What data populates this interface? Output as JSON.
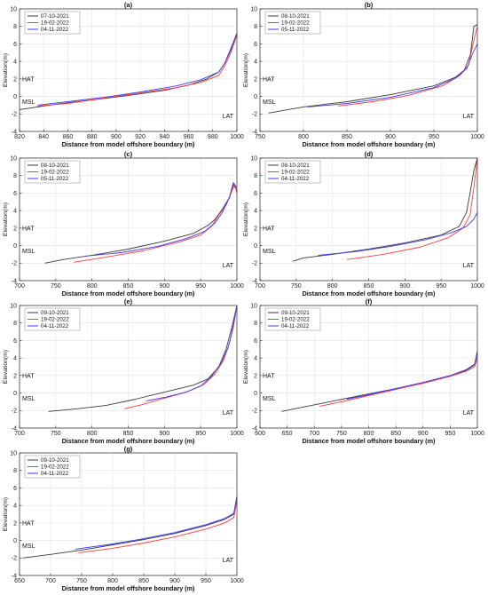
{
  "colors": {
    "black": "#3a3a3a",
    "red": "#ff3b3b",
    "blue": "#3b3bff",
    "grid": "#e3e3e3",
    "axis": "#262626"
  },
  "chart_data": [
    {
      "type": "line",
      "title": "(a)",
      "xlabel": "Distance from model offshore boundary (m)",
      "ylabel": "Elevation(m)",
      "xlim": [
        820,
        1000
      ],
      "ylim": [
        -4,
        10
      ],
      "xticks": [
        820,
        840,
        860,
        880,
        900,
        920,
        940,
        960,
        980,
        1000
      ],
      "yticks": [
        -4,
        -2,
        0,
        2,
        4,
        6,
        8,
        10
      ],
      "grid": true,
      "legend": "top-left",
      "annotations": [
        {
          "text": "HAT",
          "y": 2.0
        },
        {
          "text": "MSL",
          "y": -0.6
        },
        {
          "text": "LAT",
          "y": -2.2
        }
      ],
      "series": [
        {
          "name": "07-10-2021",
          "color": "black",
          "x": [
            820,
            850,
            880,
            910,
            940,
            960,
            975,
            985,
            990,
            995,
            1000
          ],
          "y": [
            -1.5,
            -0.9,
            -0.4,
            0.1,
            0.7,
            1.3,
            2.0,
            2.8,
            3.8,
            5.5,
            7.2
          ]
        },
        {
          "name": "19-02-2022",
          "color": "red",
          "x": [
            835,
            860,
            890,
            920,
            950,
            970,
            985,
            990,
            995,
            1000
          ],
          "y": [
            -1.1,
            -0.8,
            -0.2,
            0.4,
            1.0,
            1.6,
            2.4,
            3.5,
            5.0,
            7.0
          ]
        },
        {
          "name": "04-11-2022",
          "color": "blue",
          "x": [
            835,
            860,
            890,
            920,
            950,
            970,
            985,
            990,
            995,
            1000
          ],
          "y": [
            -1.0,
            -0.6,
            -0.1,
            0.5,
            1.2,
            1.9,
            2.8,
            3.8,
            5.3,
            7.2
          ]
        }
      ]
    },
    {
      "type": "line",
      "title": "(b)",
      "xlabel": "Distance from model offshore boundary (m)",
      "ylabel": "Elevation(m)",
      "xlim": [
        750,
        1000
      ],
      "ylim": [
        -4,
        10
      ],
      "xticks": [
        750,
        800,
        850,
        900,
        950,
        1000
      ],
      "yticks": [
        -4,
        -2,
        0,
        2,
        4,
        6,
        8,
        10
      ],
      "grid": true,
      "legend": "top-left",
      "annotations": [
        {
          "text": "HAT",
          "y": 2.0
        },
        {
          "text": "MSL",
          "y": -0.6
        },
        {
          "text": "LAT",
          "y": -2.2
        }
      ],
      "series": [
        {
          "name": "08-10-2021",
          "color": "black",
          "x": [
            760,
            800,
            850,
            900,
            950,
            975,
            985,
            992,
            996,
            1000
          ],
          "y": [
            -1.9,
            -1.2,
            -0.6,
            0.2,
            1.2,
            2.2,
            3.0,
            4.8,
            8.0,
            8.2
          ]
        },
        {
          "name": "19-02-2022",
          "color": "red",
          "x": [
            840,
            880,
            920,
            960,
            980,
            990,
            995,
            1000
          ],
          "y": [
            -1.1,
            -0.6,
            0.1,
            1.2,
            2.4,
            3.6,
            6.0,
            8.0
          ]
        },
        {
          "name": "05-11-2022",
          "color": "blue",
          "x": [
            805,
            850,
            900,
            950,
            975,
            988,
            995,
            1000
          ],
          "y": [
            -1.2,
            -0.8,
            -0.1,
            1.0,
            2.1,
            3.2,
            5.0,
            6.0
          ]
        }
      ]
    },
    {
      "type": "line",
      "title": "(c)",
      "xlabel": "Distance from model offshore boundary (m)",
      "ylabel": "Elevation(m)",
      "xlim": [
        700,
        1000
      ],
      "ylim": [
        -4,
        10
      ],
      "xticks": [
        700,
        750,
        800,
        850,
        900,
        950,
        1000
      ],
      "yticks": [
        -4,
        -2,
        0,
        2,
        4,
        6,
        8,
        10
      ],
      "grid": true,
      "legend": "top-left",
      "annotations": [
        {
          "text": "HAT",
          "y": 2.0
        },
        {
          "text": "MSL",
          "y": -0.6
        },
        {
          "text": "LAT",
          "y": -2.2
        }
      ],
      "series": [
        {
          "name": "08-10-2021",
          "color": "black",
          "x": [
            735,
            760,
            800,
            850,
            900,
            940,
            960,
            970,
            980,
            990,
            995,
            1000
          ],
          "y": [
            -2.0,
            -1.6,
            -1.1,
            -0.4,
            0.5,
            1.4,
            2.3,
            3.0,
            4.2,
            5.5,
            7.0,
            6.3
          ]
        },
        {
          "name": "19-02-2022",
          "color": "red",
          "x": [
            775,
            820,
            870,
            920,
            950,
            965,
            975,
            985,
            992,
            997,
            1000
          ],
          "y": [
            -1.9,
            -1.3,
            -0.6,
            0.4,
            1.2,
            2.2,
            3.5,
            4.6,
            6.0,
            7.0,
            6.0
          ]
        },
        {
          "name": "05-11-2022",
          "color": "blue",
          "x": [
            790,
            840,
            890,
            930,
            955,
            970,
            980,
            990,
            995,
            1000
          ],
          "y": [
            -1.2,
            -0.8,
            -0.1,
            0.8,
            1.6,
            2.6,
            3.8,
            5.6,
            7.2,
            6.6
          ]
        }
      ]
    },
    {
      "type": "line",
      "title": "(d)",
      "xlabel": "Distance from model offshore boundary (m)",
      "ylabel": "Elevation(m)",
      "xlim": [
        700,
        1000
      ],
      "ylim": [
        -4,
        10
      ],
      "xticks": [
        700,
        750,
        800,
        850,
        900,
        950,
        1000
      ],
      "yticks": [
        -4,
        -2,
        0,
        2,
        4,
        6,
        8,
        10
      ],
      "grid": true,
      "legend": "top-left",
      "annotations": [
        {
          "text": "HAT",
          "y": 2.0
        },
        {
          "text": "MSL",
          "y": -0.6
        },
        {
          "text": "LAT",
          "y": -2.2
        }
      ],
      "series": [
        {
          "name": "08-10-2021",
          "color": "black",
          "x": [
            745,
            760,
            800,
            850,
            900,
            950,
            975,
            985,
            990,
            995,
            1000
          ],
          "y": [
            -1.8,
            -1.4,
            -1.0,
            -0.4,
            0.3,
            1.2,
            2.2,
            3.8,
            6.0,
            8.5,
            10.0
          ]
        },
        {
          "name": "19-02-2022",
          "color": "red",
          "x": [
            820,
            870,
            920,
            960,
            980,
            990,
            995,
            1000
          ],
          "y": [
            -1.6,
            -1.0,
            -0.2,
            0.9,
            2.0,
            3.5,
            6.5,
            10.0
          ]
        },
        {
          "name": "04-11-2022",
          "color": "blue",
          "x": [
            780,
            830,
            880,
            930,
            965,
            985,
            995,
            1000
          ],
          "y": [
            -1.1,
            -0.7,
            -0.1,
            0.7,
            1.5,
            2.2,
            3.0,
            3.8
          ]
        }
      ]
    },
    {
      "type": "line",
      "title": "(e)",
      "xlabel": "Distance from model offshore boundary (m)",
      "ylabel": "Elevation(m)",
      "xlim": [
        700,
        1000
      ],
      "ylim": [
        -4,
        10
      ],
      "xticks": [
        700,
        750,
        800,
        850,
        900,
        950,
        1000
      ],
      "yticks": [
        -4,
        -2,
        0,
        2,
        4,
        6,
        8,
        10
      ],
      "grid": true,
      "legend": "top-left",
      "annotations": [
        {
          "text": "HAT",
          "y": 2.0
        },
        {
          "text": "MSL",
          "y": -0.6
        },
        {
          "text": "LAT",
          "y": -2.2
        }
      ],
      "series": [
        {
          "name": "09-10-2021",
          "color": "black",
          "x": [
            740,
            780,
            820,
            860,
            900,
            940,
            960,
            975,
            985,
            993,
            1000
          ],
          "y": [
            -2.1,
            -1.8,
            -1.4,
            -0.7,
            0.1,
            0.9,
            1.6,
            3.0,
            5.0,
            7.5,
            10.0
          ]
        },
        {
          "name": "19-02-2022",
          "color": "red",
          "x": [
            845,
            870,
            900,
            930,
            955,
            970,
            982,
            990,
            996,
            1000
          ],
          "y": [
            -1.8,
            -1.3,
            -0.6,
            0.1,
            1.0,
            2.2,
            3.8,
            5.8,
            8.2,
            10.0
          ]
        },
        {
          "name": "04-11-2022",
          "color": "blue",
          "x": [
            875,
            900,
            930,
            950,
            965,
            978,
            988,
            995,
            1000
          ],
          "y": [
            -0.9,
            -0.5,
            0.1,
            0.8,
            1.9,
            3.4,
            5.2,
            7.5,
            10.0
          ]
        }
      ]
    },
    {
      "type": "line",
      "title": "(f)",
      "xlabel": "Distance from model offshore boundary (m)",
      "ylabel": "Elevation(m)",
      "xlim": [
        600,
        1000
      ],
      "ylim": [
        -4,
        10
      ],
      "xticks": [
        600,
        650,
        700,
        750,
        800,
        850,
        900,
        950,
        1000
      ],
      "yticks": [
        -4,
        -2,
        0,
        2,
        4,
        6,
        8,
        10
      ],
      "grid": true,
      "legend": "top-left",
      "annotations": [
        {
          "text": "HAT",
          "y": 2.0
        },
        {
          "text": "MSL",
          "y": -0.6
        },
        {
          "text": "LAT",
          "y": -2.2
        }
      ],
      "series": [
        {
          "name": "09-10-2021",
          "color": "black",
          "x": [
            640,
            680,
            720,
            760,
            800,
            850,
            900,
            950,
            980,
            995,
            1000
          ],
          "y": [
            -2.1,
            -1.6,
            -1.1,
            -0.6,
            -0.1,
            0.5,
            1.2,
            2.0,
            2.6,
            3.2,
            4.6
          ]
        },
        {
          "name": "19-02-2022",
          "color": "red",
          "x": [
            710,
            750,
            800,
            850,
            900,
            950,
            980,
            995,
            1000
          ],
          "y": [
            -1.5,
            -1.0,
            -0.3,
            0.4,
            1.1,
            1.9,
            2.5,
            3.0,
            4.0
          ]
        },
        {
          "name": "04-11-2022",
          "color": "blue",
          "x": [
            760,
            800,
            850,
            900,
            950,
            980,
            995,
            1000
          ],
          "y": [
            -0.7,
            -0.2,
            0.5,
            1.2,
            2.0,
            2.7,
            3.3,
            4.8
          ]
        }
      ]
    },
    {
      "type": "line",
      "title": "(g)",
      "xlabel": "Distance from model offshore boundary (m)",
      "ylabel": "Elevation(m)",
      "xlim": [
        650,
        1000
      ],
      "ylim": [
        -4,
        10
      ],
      "xticks": [
        650,
        700,
        750,
        800,
        850,
        900,
        950,
        1000
      ],
      "yticks": [
        -4,
        -2,
        0,
        2,
        4,
        6,
        8,
        10
      ],
      "grid": true,
      "legend": "top-left",
      "annotations": [
        {
          "text": "HAT",
          "y": 2.0
        },
        {
          "text": "MSL",
          "y": -0.6
        },
        {
          "text": "LAT",
          "y": -2.2
        }
      ],
      "series": [
        {
          "name": "09-10-2021",
          "color": "black",
          "x": [
            655,
            700,
            750,
            800,
            850,
            900,
            950,
            980,
            995,
            1000
          ],
          "y": [
            -2.0,
            -1.6,
            -1.1,
            -0.5,
            0.1,
            0.8,
            1.7,
            2.4,
            3.0,
            5.0
          ]
        },
        {
          "name": "19-02-2022",
          "color": "red",
          "x": [
            745,
            800,
            850,
            900,
            950,
            980,
            995,
            1000
          ],
          "y": [
            -1.4,
            -0.9,
            -0.3,
            0.4,
            1.3,
            2.0,
            2.6,
            4.5
          ]
        },
        {
          "name": "04-11-2022",
          "color": "blue",
          "x": [
            740,
            800,
            850,
            900,
            950,
            980,
            995,
            1000
          ],
          "y": [
            -1.0,
            -0.4,
            0.2,
            0.9,
            1.8,
            2.5,
            3.1,
            5.0
          ]
        }
      ]
    }
  ]
}
